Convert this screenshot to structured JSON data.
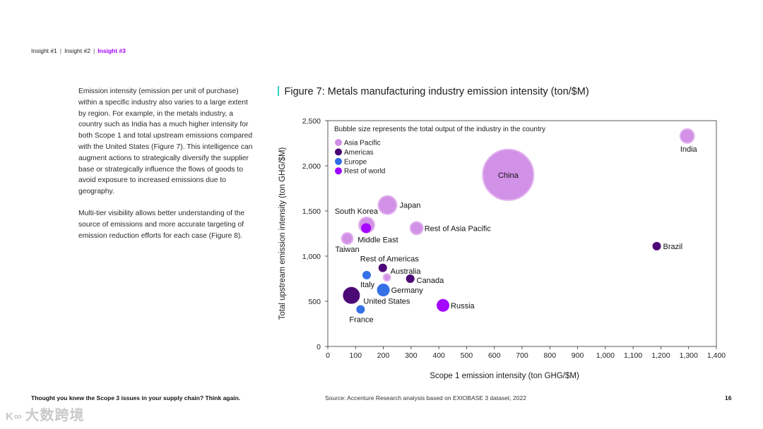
{
  "breadcrumb": {
    "item1": "Insight #1",
    "item2": "Insight #2",
    "item3": "Insight #3",
    "separator": "|"
  },
  "body": {
    "para1": "Emission intensity (emission per unit of purchase) within a specific industry also varies to a large extent by region. For example, in the metals industry, a country such as India has a much higher intensity for both Scope 1 and total upstream emissions compared with the United States (Figure 7). This intelligence can augment actions to strategically diversify the supplier base or strategically influence the flows of goods to avoid exposure to increased emissions due to geography.",
    "para2": "Multi-tier visibility allows better understanding of the source of emissions and more accurate targeting of emission reduction efforts for each case (Figure 8)."
  },
  "figure": {
    "title": "Figure 7: Metals manufacturing industry emission intensity (ton/$M)"
  },
  "footer": {
    "tagline": "Thought you knew the Scope 3 issues in your supply chain? Think again.",
    "source": "Source: Accenture Research analysis based on EXIOBASE 3 dataset, 2022",
    "page": "16"
  },
  "watermark": {
    "logo": "K∞",
    "text": "大数跨境"
  },
  "colors": {
    "accent": "#a100ff",
    "title_bar": "#2ad1c9",
    "Asia Pacific": "#d08ee6",
    "Americas": "#460073",
    "Europe": "#2e6be6",
    "Rest of world": "#a100ff"
  },
  "chart_data": {
    "type": "scatter",
    "title": "Figure 7: Metals manufacturing industry emission intensity (ton/$M)",
    "note": "Bubble size represents the total output of the industry in the country",
    "xlabel": "Scope 1 emission intensity (ton GHG/$M)",
    "ylabel": "Total upstream emission intensity (ton GHG/$M)",
    "xlim": [
      0,
      1400
    ],
    "ylim": [
      0,
      2500
    ],
    "xticks": [
      0,
      100,
      200,
      300,
      400,
      500,
      600,
      700,
      800,
      900,
      1000,
      1100,
      1200,
      1300,
      1400
    ],
    "xtick_labels": [
      "0",
      "100",
      "200",
      "300",
      "400",
      "500",
      "600",
      "700",
      "800",
      "900",
      "1,000",
      "1,100",
      "1,200",
      "1,300",
      "1,400"
    ],
    "yticks": [
      0,
      500,
      1000,
      1500,
      2000,
      2500
    ],
    "ytick_labels": [
      "0",
      "500",
      "1,000",
      "1,500",
      "2,000",
      "2,500"
    ],
    "legend": [
      "Asia Pacific",
      "Americas",
      "Europe",
      "Rest of world"
    ],
    "legend_position": "top-left",
    "points": [
      {
        "label": "China",
        "region": "Asia Pacific",
        "x": 650,
        "y": 1900,
        "size": 36
      },
      {
        "label": "India",
        "region": "Asia Pacific",
        "x": 1295,
        "y": 2330,
        "size": 10
      },
      {
        "label": "Japan",
        "region": "Asia Pacific",
        "x": 215,
        "y": 1565,
        "size": 13
      },
      {
        "label": "South Korea",
        "region": "Asia Pacific",
        "x": 140,
        "y": 1345,
        "size": 11
      },
      {
        "label": "Rest of Asia Pacific",
        "region": "Asia Pacific",
        "x": 320,
        "y": 1310,
        "size": 9
      },
      {
        "label": "Taiwan",
        "region": "Asia Pacific",
        "x": 70,
        "y": 1195,
        "size": 8
      },
      {
        "label": "Australia",
        "region": "Asia Pacific",
        "x": 213,
        "y": 765,
        "size": 5
      },
      {
        "label": "Middle East",
        "region": "Rest of world",
        "x": 138,
        "y": 1310,
        "size": 7
      },
      {
        "label": "Russia",
        "region": "Rest of world",
        "x": 415,
        "y": 455,
        "size": 9
      },
      {
        "label": "Brazil",
        "region": "Americas",
        "x": 1185,
        "y": 1110,
        "size": 6
      },
      {
        "label": "Rest of Americas",
        "region": "Americas",
        "x": 198,
        "y": 870,
        "size": 6
      },
      {
        "label": "Canada",
        "region": "Americas",
        "x": 297,
        "y": 750,
        "size": 6
      },
      {
        "label": "United States",
        "region": "Americas",
        "x": 85,
        "y": 565,
        "size": 12
      },
      {
        "label": "Italy",
        "region": "Europe",
        "x": 140,
        "y": 790,
        "size": 6
      },
      {
        "label": "Germany",
        "region": "Europe",
        "x": 200,
        "y": 625,
        "size": 9
      },
      {
        "label": "France",
        "region": "Europe",
        "x": 118,
        "y": 410,
        "size": 6
      }
    ]
  }
}
